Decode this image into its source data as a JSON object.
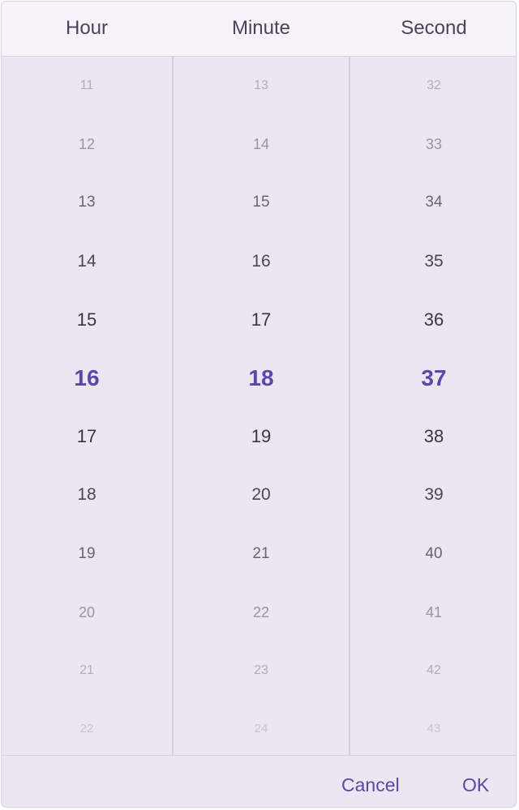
{
  "columns": [
    {
      "title": "Hour",
      "values": [
        "11",
        "12",
        "13",
        "14",
        "15",
        "16",
        "17",
        "18",
        "19",
        "20",
        "21",
        "22"
      ],
      "selected_index": 5
    },
    {
      "title": "Minute",
      "values": [
        "13",
        "14",
        "15",
        "16",
        "17",
        "18",
        "19",
        "20",
        "21",
        "22",
        "23",
        "24"
      ],
      "selected_index": 5
    },
    {
      "title": "Second",
      "values": [
        "32",
        "33",
        "34",
        "35",
        "36",
        "37",
        "38",
        "39",
        "40",
        "41",
        "42",
        "43"
      ],
      "selected_index": 5
    }
  ],
  "footer": {
    "cancel_label": "Cancel",
    "ok_label": "OK"
  },
  "colors": {
    "accent": "#5b47a8",
    "surface": "#ece6f3",
    "header": "#f7f3fa"
  }
}
